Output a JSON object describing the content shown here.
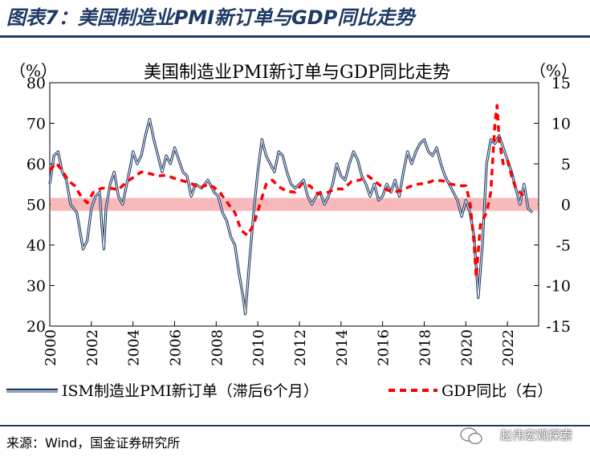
{
  "figure_title": "图表7：美国制造业PMI新订单与GDP同比走势",
  "source": "来源：Wind，国金证券研究所",
  "watermark": "赵伟宏观探索",
  "colors": {
    "pmi": "#1f3a64",
    "gdp": "#ff0000",
    "band": "#f7b9bb",
    "title_rule": "#1f3a64"
  },
  "chart_data": {
    "type": "line",
    "title": "美国制造业PMI新订单与GDP同比走势",
    "left_axis": {
      "unit": "（%）",
      "ylim": [
        20,
        80
      ],
      "ticks": [
        20,
        30,
        40,
        50,
        60,
        70,
        80
      ]
    },
    "right_axis": {
      "unit": "（%）",
      "ylim": [
        -15,
        15
      ],
      "ticks": [
        -15,
        -10,
        -5,
        0,
        5,
        10,
        15
      ]
    },
    "x_axis": {
      "xlim": [
        2000,
        2023.5
      ],
      "ticks": [
        "2000",
        "2002",
        "2004",
        "2006",
        "2008",
        "2010",
        "2012",
        "2014",
        "2016",
        "2018",
        "2020",
        "2022"
      ]
    },
    "band": {
      "axis": "right",
      "from": -0.8,
      "to": 0.8
    },
    "series": [
      {
        "name": "ISM制造业PMI新订单（滞后6个月）",
        "axis": "left",
        "style": "solid",
        "points": [
          [
            2000.0,
            55
          ],
          [
            2000.2,
            62
          ],
          [
            2000.4,
            63
          ],
          [
            2000.6,
            58
          ],
          [
            2000.8,
            56
          ],
          [
            2001.0,
            50
          ],
          [
            2001.3,
            48
          ],
          [
            2001.6,
            39
          ],
          [
            2001.8,
            41
          ],
          [
            2002.0,
            49
          ],
          [
            2002.2,
            52
          ],
          [
            2002.4,
            53
          ],
          [
            2002.5,
            45
          ],
          [
            2002.6,
            39
          ],
          [
            2002.7,
            49
          ],
          [
            2002.9,
            55
          ],
          [
            2003.1,
            58
          ],
          [
            2003.3,
            52
          ],
          [
            2003.5,
            50
          ],
          [
            2003.7,
            55
          ],
          [
            2003.9,
            60
          ],
          [
            2004.0,
            63
          ],
          [
            2004.2,
            60
          ],
          [
            2004.4,
            62
          ],
          [
            2004.6,
            67
          ],
          [
            2004.8,
            71
          ],
          [
            2005.0,
            66
          ],
          [
            2005.2,
            62
          ],
          [
            2005.4,
            58
          ],
          [
            2005.6,
            62
          ],
          [
            2005.8,
            60
          ],
          [
            2006.0,
            64
          ],
          [
            2006.2,
            61
          ],
          [
            2006.4,
            58
          ],
          [
            2006.6,
            57
          ],
          [
            2006.8,
            52
          ],
          [
            2007.0,
            55
          ],
          [
            2007.3,
            54
          ],
          [
            2007.6,
            56
          ],
          [
            2007.9,
            53
          ],
          [
            2008.1,
            52
          ],
          [
            2008.3,
            48
          ],
          [
            2008.5,
            46
          ],
          [
            2008.7,
            42
          ],
          [
            2008.9,
            40
          ],
          [
            2009.1,
            33
          ],
          [
            2009.3,
            27
          ],
          [
            2009.4,
            23
          ],
          [
            2009.6,
            36
          ],
          [
            2009.8,
            48
          ],
          [
            2010.0,
            58
          ],
          [
            2010.2,
            66
          ],
          [
            2010.4,
            62
          ],
          [
            2010.6,
            60
          ],
          [
            2010.8,
            58
          ],
          [
            2011.0,
            63
          ],
          [
            2011.2,
            62
          ],
          [
            2011.4,
            58
          ],
          [
            2011.6,
            55
          ],
          [
            2011.8,
            54
          ],
          [
            2012.0,
            55
          ],
          [
            2012.2,
            56
          ],
          [
            2012.4,
            52
          ],
          [
            2012.6,
            50
          ],
          [
            2012.8,
            52
          ],
          [
            2013.0,
            53
          ],
          [
            2013.2,
            50
          ],
          [
            2013.4,
            52
          ],
          [
            2013.6,
            55
          ],
          [
            2013.8,
            60
          ],
          [
            2014.0,
            57
          ],
          [
            2014.2,
            56
          ],
          [
            2014.4,
            60
          ],
          [
            2014.6,
            63
          ],
          [
            2014.8,
            61
          ],
          [
            2015.0,
            57
          ],
          [
            2015.2,
            55
          ],
          [
            2015.4,
            52
          ],
          [
            2015.6,
            55
          ],
          [
            2015.8,
            51
          ],
          [
            2016.0,
            52
          ],
          [
            2016.2,
            55
          ],
          [
            2016.4,
            53
          ],
          [
            2016.6,
            56
          ],
          [
            2016.8,
            52
          ],
          [
            2017.0,
            58
          ],
          [
            2017.2,
            63
          ],
          [
            2017.4,
            60
          ],
          [
            2017.6,
            63
          ],
          [
            2017.8,
            65
          ],
          [
            2018.0,
            66
          ],
          [
            2018.2,
            63
          ],
          [
            2018.4,
            62
          ],
          [
            2018.6,
            64
          ],
          [
            2018.8,
            60
          ],
          [
            2019.0,
            57
          ],
          [
            2019.2,
            55
          ],
          [
            2019.4,
            53
          ],
          [
            2019.6,
            51
          ],
          [
            2019.8,
            47
          ],
          [
            2020.0,
            51
          ],
          [
            2020.2,
            48
          ],
          [
            2020.4,
            42
          ],
          [
            2020.6,
            27
          ],
          [
            2020.8,
            40
          ],
          [
            2021.0,
            60
          ],
          [
            2021.2,
            66
          ],
          [
            2021.4,
            65
          ],
          [
            2021.6,
            67
          ],
          [
            2021.8,
            64
          ],
          [
            2022.0,
            61
          ],
          [
            2022.2,
            58
          ],
          [
            2022.4,
            54
          ],
          [
            2022.6,
            50
          ],
          [
            2022.8,
            55
          ],
          [
            2023.0,
            49
          ],
          [
            2023.2,
            48
          ]
        ]
      },
      {
        "name": "GDP同比（右）",
        "axis": "right",
        "style": "dashed",
        "points": [
          [
            2000.0,
            4.2
          ],
          [
            2000.3,
            5.1
          ],
          [
            2000.6,
            4.2
          ],
          [
            2000.9,
            2.9
          ],
          [
            2001.2,
            2.3
          ],
          [
            2001.5,
            1.0
          ],
          [
            2001.8,
            0.2
          ],
          [
            2002.1,
            1.5
          ],
          [
            2002.5,
            2.0
          ],
          [
            2002.9,
            2.0
          ],
          [
            2003.3,
            1.8
          ],
          [
            2003.7,
            2.8
          ],
          [
            2004.0,
            3.3
          ],
          [
            2004.4,
            4.0
          ],
          [
            2004.8,
            3.8
          ],
          [
            2005.2,
            3.5
          ],
          [
            2005.6,
            3.6
          ],
          [
            2006.0,
            3.2
          ],
          [
            2006.4,
            2.9
          ],
          [
            2006.8,
            2.6
          ],
          [
            2007.2,
            2.0
          ],
          [
            2007.6,
            2.5
          ],
          [
            2007.9,
            2.1
          ],
          [
            2008.2,
            1.4
          ],
          [
            2008.6,
            0.0
          ],
          [
            2008.9,
            -1.0
          ],
          [
            2009.2,
            -3.2
          ],
          [
            2009.5,
            -3.8
          ],
          [
            2009.8,
            -2.5
          ],
          [
            2010.1,
            0.0
          ],
          [
            2010.4,
            2.5
          ],
          [
            2010.7,
            3.0
          ],
          [
            2011.0,
            2.2
          ],
          [
            2011.4,
            1.6
          ],
          [
            2011.8,
            1.5
          ],
          [
            2012.1,
            2.5
          ],
          [
            2012.5,
            2.3
          ],
          [
            2012.9,
            1.3
          ],
          [
            2013.3,
            1.4
          ],
          [
            2013.7,
            1.9
          ],
          [
            2014.1,
            1.9
          ],
          [
            2014.5,
            2.8
          ],
          [
            2014.9,
            3.0
          ],
          [
            2015.3,
            3.5
          ],
          [
            2015.7,
            2.7
          ],
          [
            2016.1,
            1.9
          ],
          [
            2016.5,
            1.5
          ],
          [
            2016.9,
            1.7
          ],
          [
            2017.3,
            2.2
          ],
          [
            2017.7,
            2.5
          ],
          [
            2018.1,
            2.6
          ],
          [
            2018.5,
            3.0
          ],
          [
            2018.9,
            2.9
          ],
          [
            2019.3,
            2.5
          ],
          [
            2019.7,
            2.3
          ],
          [
            2020.0,
            2.3
          ],
          [
            2020.2,
            0.3
          ],
          [
            2020.4,
            -5.0
          ],
          [
            2020.5,
            -9.0
          ],
          [
            2020.7,
            -2.5
          ],
          [
            2021.0,
            -1.0
          ],
          [
            2021.2,
            1.5
          ],
          [
            2021.4,
            10.0
          ],
          [
            2021.5,
            12.2
          ],
          [
            2021.6,
            8.0
          ],
          [
            2021.8,
            5.0
          ],
          [
            2022.0,
            5.5
          ],
          [
            2022.2,
            3.5
          ],
          [
            2022.4,
            2.0
          ],
          [
            2022.6,
            1.5
          ],
          [
            2022.8,
            0.9
          ]
        ]
      }
    ],
    "legend": [
      "ISM制造业PMI新订单（滞后6个月）",
      "GDP同比（右）"
    ],
    "legend_position": "bottom"
  }
}
